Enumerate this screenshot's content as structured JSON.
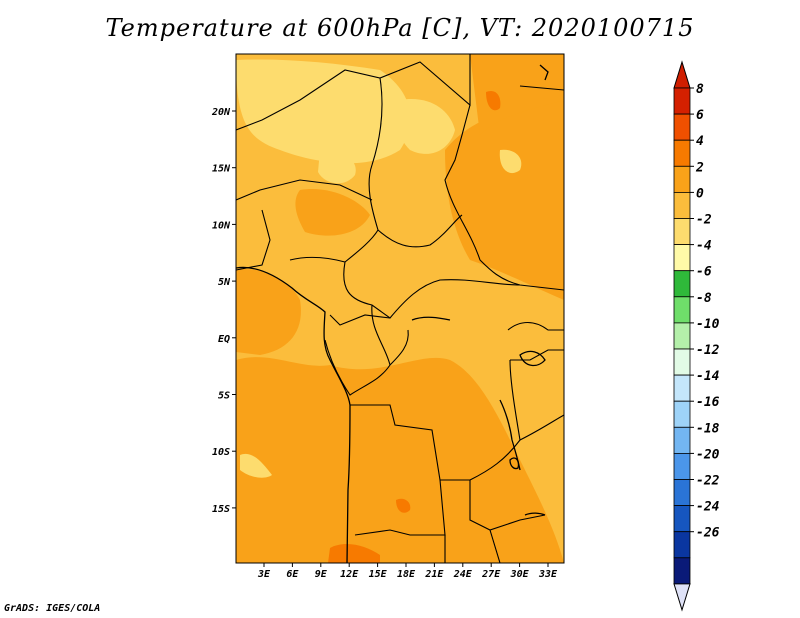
{
  "title": "Temperature at 600hPa [C], VT: 2020100715",
  "credit": "GrADS: IGES/COLA",
  "map": {
    "lon_ticks": [
      "3E",
      "6E",
      "9E",
      "12E",
      "15E",
      "18E",
      "21E",
      "24E",
      "27E",
      "30E",
      "33E"
    ],
    "lat_ticks": [
      "20N",
      "15N",
      "10N",
      "5N",
      "EQ",
      "5S",
      "10S",
      "15S"
    ]
  },
  "colorbar": {
    "labels": [
      "8",
      "6",
      "4",
      "2",
      "0",
      "-2",
      "-4",
      "-6",
      "-8",
      "-10",
      "-12",
      "-14",
      "-16",
      "-18",
      "-20",
      "-22",
      "-24",
      "-26"
    ],
    "colors": [
      "#d42000",
      "#f05000",
      "#f77a00",
      "#f9a219",
      "#fbbd3c",
      "#fddc6e",
      "#fffaa8",
      "#2fb93a",
      "#6fde6a",
      "#b4f0aa",
      "#e2fbe6",
      "#c4e6fb",
      "#9ed3f8",
      "#73b6f2",
      "#4b96ea",
      "#2a74d6",
      "#1656bf",
      "#0a36a0",
      "#0a1a78"
    ],
    "top_arrow_color": "#d01e00",
    "bottom_arrow_color": "#dfe2f7"
  }
}
